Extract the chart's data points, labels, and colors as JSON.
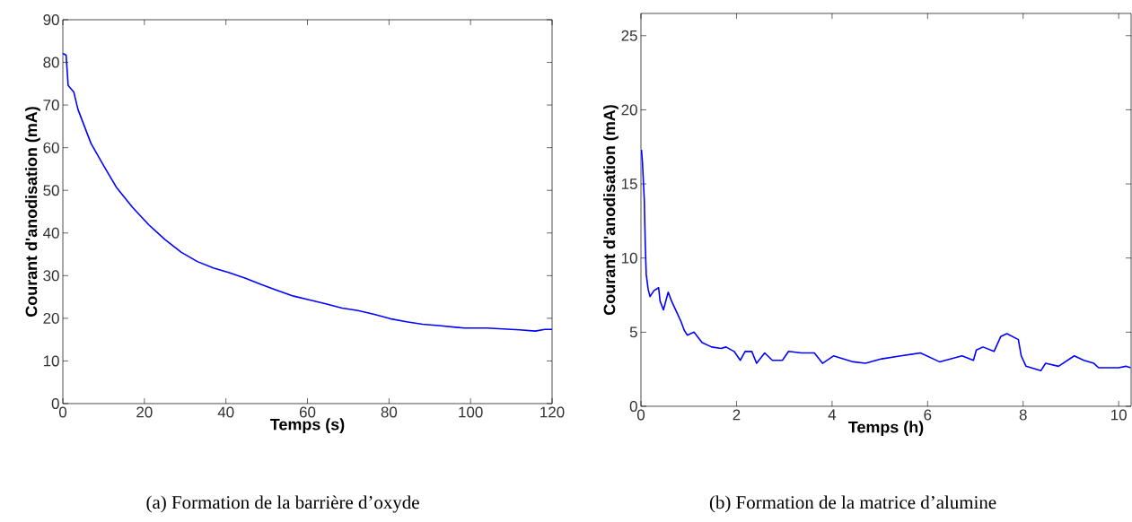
{
  "chart_data": [
    {
      "type": "line",
      "xlabel": "Temps (s)",
      "ylabel": "Courant d'anodisation (mA)",
      "xlim": [
        0,
        120
      ],
      "ylim": [
        0,
        90
      ],
      "xticks": [
        0,
        20,
        40,
        60,
        80,
        100,
        120
      ],
      "yticks": [
        0,
        10,
        20,
        30,
        40,
        50,
        60,
        70,
        80,
        90
      ],
      "annotations": [
        "(a)  Formation de la barrière d’oxyde"
      ],
      "series": [
        {
          "color": "#0000ff",
          "x": [
            0,
            0.8,
            1.3,
            2.7,
            3.7,
            6.9,
            10,
            13.2,
            17.1,
            21.1,
            25,
            29,
            33,
            36.9,
            40.8,
            44.8,
            48.7,
            52.7,
            56.6,
            60.6,
            64.5,
            68.5,
            72.4,
            76.4,
            80.3,
            84.3,
            88.2,
            92.2,
            98.5,
            104,
            112,
            115.9,
            118.2,
            120
          ],
          "values": [
            82.1,
            81.7,
            74.6,
            73,
            69,
            61,
            55.8,
            50.6,
            46,
            41.9,
            38.5,
            35.5,
            33.3,
            31.8,
            30.7,
            29.4,
            27.9,
            26.5,
            25.2,
            24.3,
            23.4,
            22.4,
            21.8,
            20.9,
            19.9,
            19.2,
            18.6,
            18.3,
            17.7,
            17.7,
            17.3,
            17.0,
            17.4,
            17.4
          ]
        }
      ]
    },
    {
      "type": "line",
      "xlabel": "Temps (h)",
      "ylabel": "Courant d'anodisation (mA)",
      "xlim": [
        0,
        10.26
      ],
      "ylim": [
        0,
        26.5
      ],
      "xticks": [
        0,
        2,
        4,
        6,
        8,
        10
      ],
      "yticks": [
        0,
        5,
        10,
        15,
        20,
        25
      ],
      "annotations": [
        "(b) Formation de la matrice d’alumine"
      ],
      "series": [
        {
          "color": "#0000ff",
          "x": [
            0.01,
            0.03,
            0.07,
            0.09,
            0.11,
            0.15,
            0.19,
            0.27,
            0.37,
            0.4,
            0.47,
            0.57,
            0.64,
            0.74,
            0.84,
            0.91,
            0.97,
            1.11,
            1.28,
            1.48,
            1.68,
            1.78,
            1.95,
            2.08,
            2.18,
            2.32,
            2.42,
            2.59,
            2.75,
            2.96,
            3.09,
            3.36,
            3.63,
            3.8,
            4.03,
            4.44,
            4.7,
            5.04,
            5.44,
            5.85,
            6.25,
            6.72,
            6.96,
            7.02,
            7.16,
            7.39,
            7.53,
            7.66,
            7.9,
            7.96,
            8.06,
            8.37,
            8.47,
            8.74,
            9.07,
            9.27,
            9.48,
            9.58,
            10.0,
            10.15,
            10.25
          ],
          "values": [
            17.3,
            16.5,
            13.9,
            10.9,
            8.9,
            7.9,
            7.4,
            7.8,
            8.0,
            7.1,
            6.5,
            7.7,
            7.1,
            6.4,
            5.7,
            5.1,
            4.8,
            5.0,
            4.3,
            4.0,
            3.9,
            4.0,
            3.7,
            3.1,
            3.7,
            3.7,
            2.9,
            3.6,
            3.1,
            3.1,
            3.7,
            3.6,
            3.6,
            2.9,
            3.4,
            3.0,
            2.9,
            3.2,
            3.4,
            3.6,
            3.0,
            3.4,
            3.1,
            3.8,
            4.0,
            3.7,
            4.7,
            4.9,
            4.5,
            3.4,
            2.7,
            2.4,
            2.9,
            2.7,
            3.4,
            3.1,
            2.9,
            2.6,
            2.6,
            2.7,
            2.6
          ]
        }
      ]
    }
  ]
}
